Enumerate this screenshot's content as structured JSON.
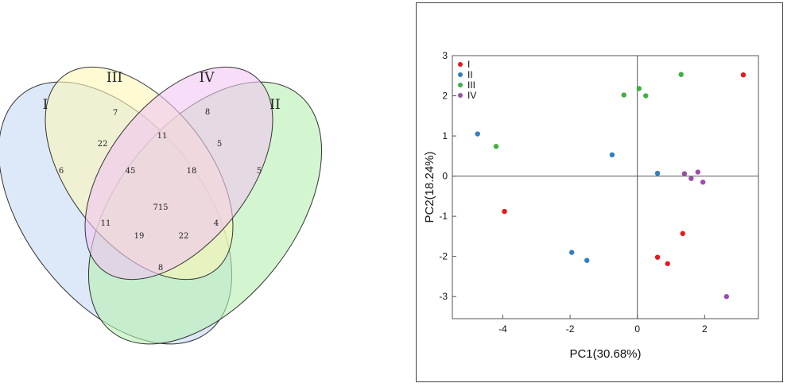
{
  "chart_data": [
    {
      "type": "venn",
      "sets": [
        {
          "label": "I",
          "color": "#c7dbf5"
        },
        {
          "label": "II",
          "color": "#b5f0b0"
        },
        {
          "label": "III",
          "color": "#fbf7b8"
        },
        {
          "label": "IV",
          "color": "#f2c6f2"
        }
      ],
      "regions": [
        {
          "sets": "I",
          "value": "6"
        },
        {
          "sets": "II",
          "value": "5"
        },
        {
          "sets": "III",
          "value": "7"
        },
        {
          "sets": "IV",
          "value": "8"
        },
        {
          "sets": "I&III",
          "value": "22"
        },
        {
          "sets": "III&IV",
          "value": "11"
        },
        {
          "sets": "II&IV",
          "value": "5"
        },
        {
          "sets": "I&III&IV",
          "value": "45"
        },
        {
          "sets": "II&III&IV",
          "value": "18"
        },
        {
          "sets": "I&IV",
          "value": "11"
        },
        {
          "sets": "I&II&III&IV",
          "value": "715"
        },
        {
          "sets": "II&III",
          "value": "4"
        },
        {
          "sets": "I&II&IV",
          "value": "19"
        },
        {
          "sets": "I&II&III",
          "value": "22"
        },
        {
          "sets": "I&II",
          "value": "8"
        }
      ]
    },
    {
      "type": "scatter",
      "xlabel": "PC1(30.68%)",
      "ylabel": "PC2(18.24%)",
      "xlim": [
        -5.5,
        3.6
      ],
      "ylim": [
        -3.55,
        3.0
      ],
      "xticks": [
        -4,
        -2,
        0,
        2
      ],
      "yticks": [
        3,
        2,
        1,
        0,
        -1,
        -2,
        -3
      ],
      "grid": false,
      "zero_lines": true,
      "legend_position": "top-left",
      "series": [
        {
          "name": "I",
          "color": "#e8191c",
          "points": [
            [
              3.15,
              2.52
            ],
            [
              -3.95,
              -0.88
            ],
            [
              1.35,
              -1.43
            ],
            [
              0.6,
              -2.02
            ],
            [
              0.9,
              -2.18
            ]
          ]
        },
        {
          "name": "II",
          "color": "#2f7fc1",
          "points": [
            [
              -4.75,
              1.05
            ],
            [
              -0.75,
              0.53
            ],
            [
              0.6,
              0.07
            ],
            [
              -1.95,
              -1.9
            ],
            [
              -1.5,
              -2.1
            ]
          ]
        },
        {
          "name": "III",
          "color": "#40b040",
          "points": [
            [
              1.3,
              2.53
            ],
            [
              0.05,
              2.18
            ],
            [
              -0.4,
              2.02
            ],
            [
              0.25,
              2.0
            ],
            [
              -4.2,
              0.74
            ]
          ]
        },
        {
          "name": "IV",
          "color": "#9b4ea8",
          "points": [
            [
              1.4,
              0.06
            ],
            [
              1.8,
              0.1
            ],
            [
              1.6,
              -0.06
            ],
            [
              1.95,
              -0.15
            ],
            [
              2.65,
              -3.0
            ]
          ]
        }
      ]
    }
  ]
}
